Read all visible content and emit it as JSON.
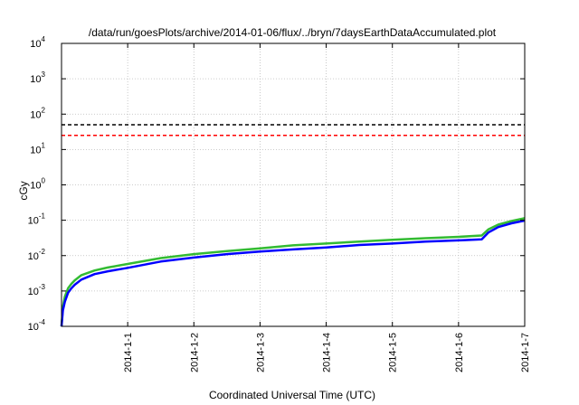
{
  "chart_data": {
    "type": "line",
    "title": "/data/run/goesPlots/archive/2014-01-06/flux/../bryn/7daysEarthDataAccumulated.plot",
    "xlabel": "Coordinated Universal Time (UTC)",
    "ylabel": "cGy",
    "yscale": "log",
    "ylim": [
      0.0001,
      10000
    ],
    "xlim": [
      0,
      7
    ],
    "grid": true,
    "x_ticks": [
      {
        "x": 1,
        "label": "2014-1-1"
      },
      {
        "x": 2,
        "label": "2014-1-2"
      },
      {
        "x": 3,
        "label": "2014-1-3"
      },
      {
        "x": 4,
        "label": "2014-1-4"
      },
      {
        "x": 5,
        "label": "2014-1-5"
      },
      {
        "x": 6,
        "label": "2014-1-6"
      },
      {
        "x": 7,
        "label": "2014-1-7"
      }
    ],
    "y_ticks": [
      {
        "value": 0.0001,
        "base": "10",
        "exp": "-4"
      },
      {
        "value": 0.001,
        "base": "10",
        "exp": "-3"
      },
      {
        "value": 0.01,
        "base": "10",
        "exp": "-2"
      },
      {
        "value": 0.1,
        "base": "10",
        "exp": "-1"
      },
      {
        "value": 1,
        "base": "10",
        "exp": "0"
      },
      {
        "value": 10,
        "base": "10",
        "exp": "1"
      },
      {
        "value": 100,
        "base": "10",
        "exp": "2"
      },
      {
        "value": 1000,
        "base": "10",
        "exp": "3"
      },
      {
        "value": 10000,
        "base": "10",
        "exp": "4"
      }
    ],
    "reference_lines": [
      {
        "y": 50,
        "color": "#000000",
        "style": "dashed"
      },
      {
        "y": 25,
        "color": "#ff0000",
        "style": "dashed"
      }
    ],
    "series": [
      {
        "color": "#33bb33",
        "x": [
          0,
          0.02,
          0.05,
          0.1,
          0.15,
          0.2,
          0.3,
          0.5,
          0.7,
          1.0,
          1.5,
          2.0,
          2.5,
          3.0,
          3.5,
          4.0,
          4.5,
          5.0,
          5.5,
          6.0,
          6.35,
          6.45,
          6.6,
          6.8,
          7.0
        ],
        "y": [
          0.0001,
          0.00035,
          0.0007,
          0.0012,
          0.0016,
          0.002,
          0.0028,
          0.0038,
          0.0046,
          0.0058,
          0.0085,
          0.011,
          0.0135,
          0.016,
          0.0195,
          0.022,
          0.025,
          0.028,
          0.031,
          0.034,
          0.037,
          0.055,
          0.075,
          0.095,
          0.115
        ]
      },
      {
        "color": "#0000ff",
        "x": [
          0,
          0.02,
          0.05,
          0.1,
          0.15,
          0.2,
          0.3,
          0.5,
          0.7,
          1.0,
          1.5,
          2.0,
          2.5,
          3.0,
          3.5,
          4.0,
          4.5,
          5.0,
          5.5,
          6.0,
          6.35,
          6.45,
          6.6,
          6.8,
          7.0
        ],
        "y": [
          0.0001,
          0.00028,
          0.0005,
          0.0009,
          0.0012,
          0.0015,
          0.0021,
          0.003,
          0.0036,
          0.0045,
          0.0068,
          0.0088,
          0.011,
          0.013,
          0.015,
          0.017,
          0.02,
          0.022,
          0.025,
          0.027,
          0.029,
          0.045,
          0.064,
          0.082,
          0.098
        ]
      }
    ]
  }
}
